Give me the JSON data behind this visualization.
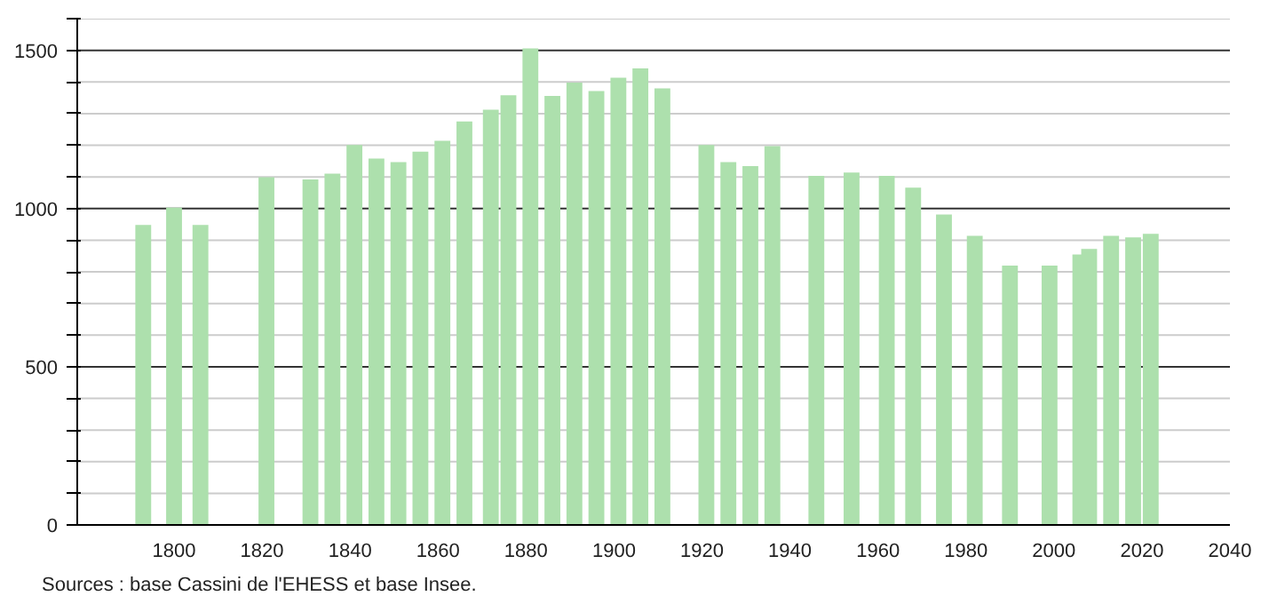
{
  "chart_data": {
    "type": "bar",
    "x": [
      1793,
      1800,
      1806,
      1821,
      1831,
      1836,
      1841,
      1846,
      1851,
      1856,
      1861,
      1866,
      1872,
      1876,
      1881,
      1886,
      1891,
      1896,
      1901,
      1906,
      1911,
      1921,
      1926,
      1931,
      1936,
      1946,
      1954,
      1962,
      1968,
      1975,
      1982,
      1990,
      1999,
      2006,
      2008,
      2013,
      2018,
      2022
    ],
    "values": [
      948,
      1003,
      948,
      1099,
      1092,
      1110,
      1201,
      1158,
      1147,
      1180,
      1214,
      1275,
      1312,
      1358,
      1506,
      1356,
      1398,
      1371,
      1413,
      1443,
      1380,
      1201,
      1147,
      1134,
      1197,
      1103,
      1114,
      1103,
      1066,
      981,
      914,
      820,
      820,
      855,
      872,
      914,
      909,
      920
    ],
    "color": "#ade0ad",
    "xlim": [
      1778,
      2040
    ],
    "xticks": [
      1800,
      1820,
      1840,
      1860,
      1880,
      1900,
      1920,
      1940,
      1960,
      1980,
      2000,
      2020,
      2040
    ],
    "ylim": [
      0,
      1600
    ],
    "yticks": [
      0,
      {
        "value": 100,
        "label": null
      },
      {
        "value": 200,
        "label": null
      },
      {
        "value": 300,
        "label": null
      },
      {
        "value": 400,
        "label": null
      },
      500,
      {
        "value": 600,
        "label": null
      },
      {
        "value": 700,
        "label": null
      },
      {
        "value": 800,
        "label": null
      },
      {
        "value": 900,
        "label": null
      },
      1000,
      {
        "value": 1100,
        "label": null
      },
      {
        "value": 1200,
        "label": null
      },
      {
        "value": 1300,
        "label": null
      },
      {
        "value": 1400,
        "label": null
      },
      1500,
      {
        "value": 1600,
        "label": null
      }
    ],
    "grid": "y",
    "annotations": [
      "Sources : base Cassini de l'EHESS et base Insee."
    ]
  }
}
